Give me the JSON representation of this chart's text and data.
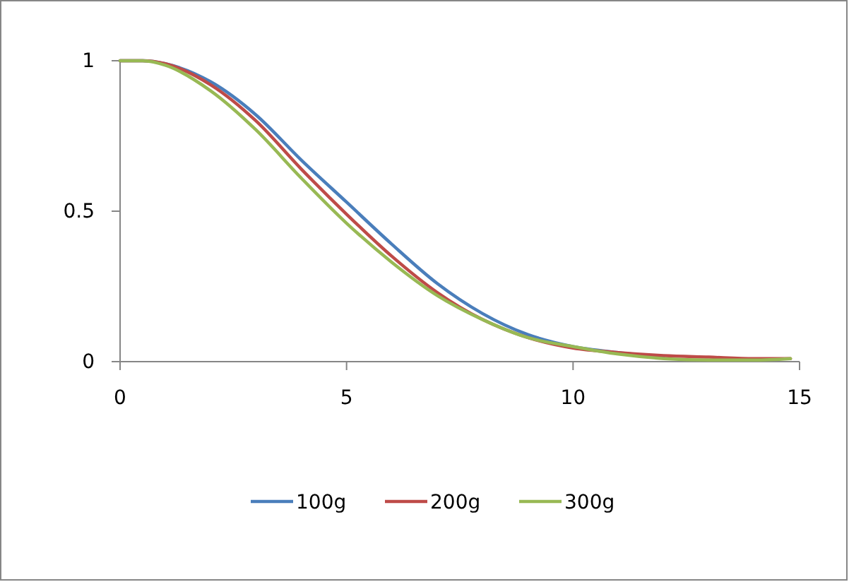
{
  "chart_data": {
    "type": "line",
    "x": [
      0,
      0.5,
      1,
      2,
      3,
      4,
      5,
      6,
      7,
      8,
      9,
      10,
      11,
      12,
      13,
      14,
      14.8
    ],
    "series": [
      {
        "name": "100g",
        "color": "#4a7ebb",
        "values": [
          1,
          1,
          0.99,
          0.93,
          0.82,
          0.67,
          0.53,
          0.39,
          0.26,
          0.16,
          0.09,
          0.05,
          0.03,
          0.015,
          null,
          null,
          null
        ]
      },
      {
        "name": "200g",
        "color": "#be4b48",
        "values": [
          1,
          1,
          0.99,
          0.92,
          0.8,
          0.64,
          0.49,
          0.35,
          0.23,
          0.14,
          0.08,
          0.045,
          0.03,
          0.02,
          0.015,
          0.01,
          0.01
        ]
      },
      {
        "name": "300g",
        "color": "#98b954",
        "values": [
          1,
          1,
          0.985,
          0.9,
          0.77,
          0.61,
          0.46,
          0.33,
          0.22,
          0.14,
          0.08,
          0.05,
          0.025,
          0.01,
          0.005,
          0.005,
          0.01
        ]
      }
    ],
    "xlim": [
      0,
      15
    ],
    "xticks": [
      0,
      5,
      10,
      15
    ],
    "ylim": [
      0,
      1
    ],
    "yticks": [
      0,
      0.5,
      1
    ],
    "grid": false,
    "legend": "bottom",
    "marker": "none",
    "line_style": "solid"
  }
}
